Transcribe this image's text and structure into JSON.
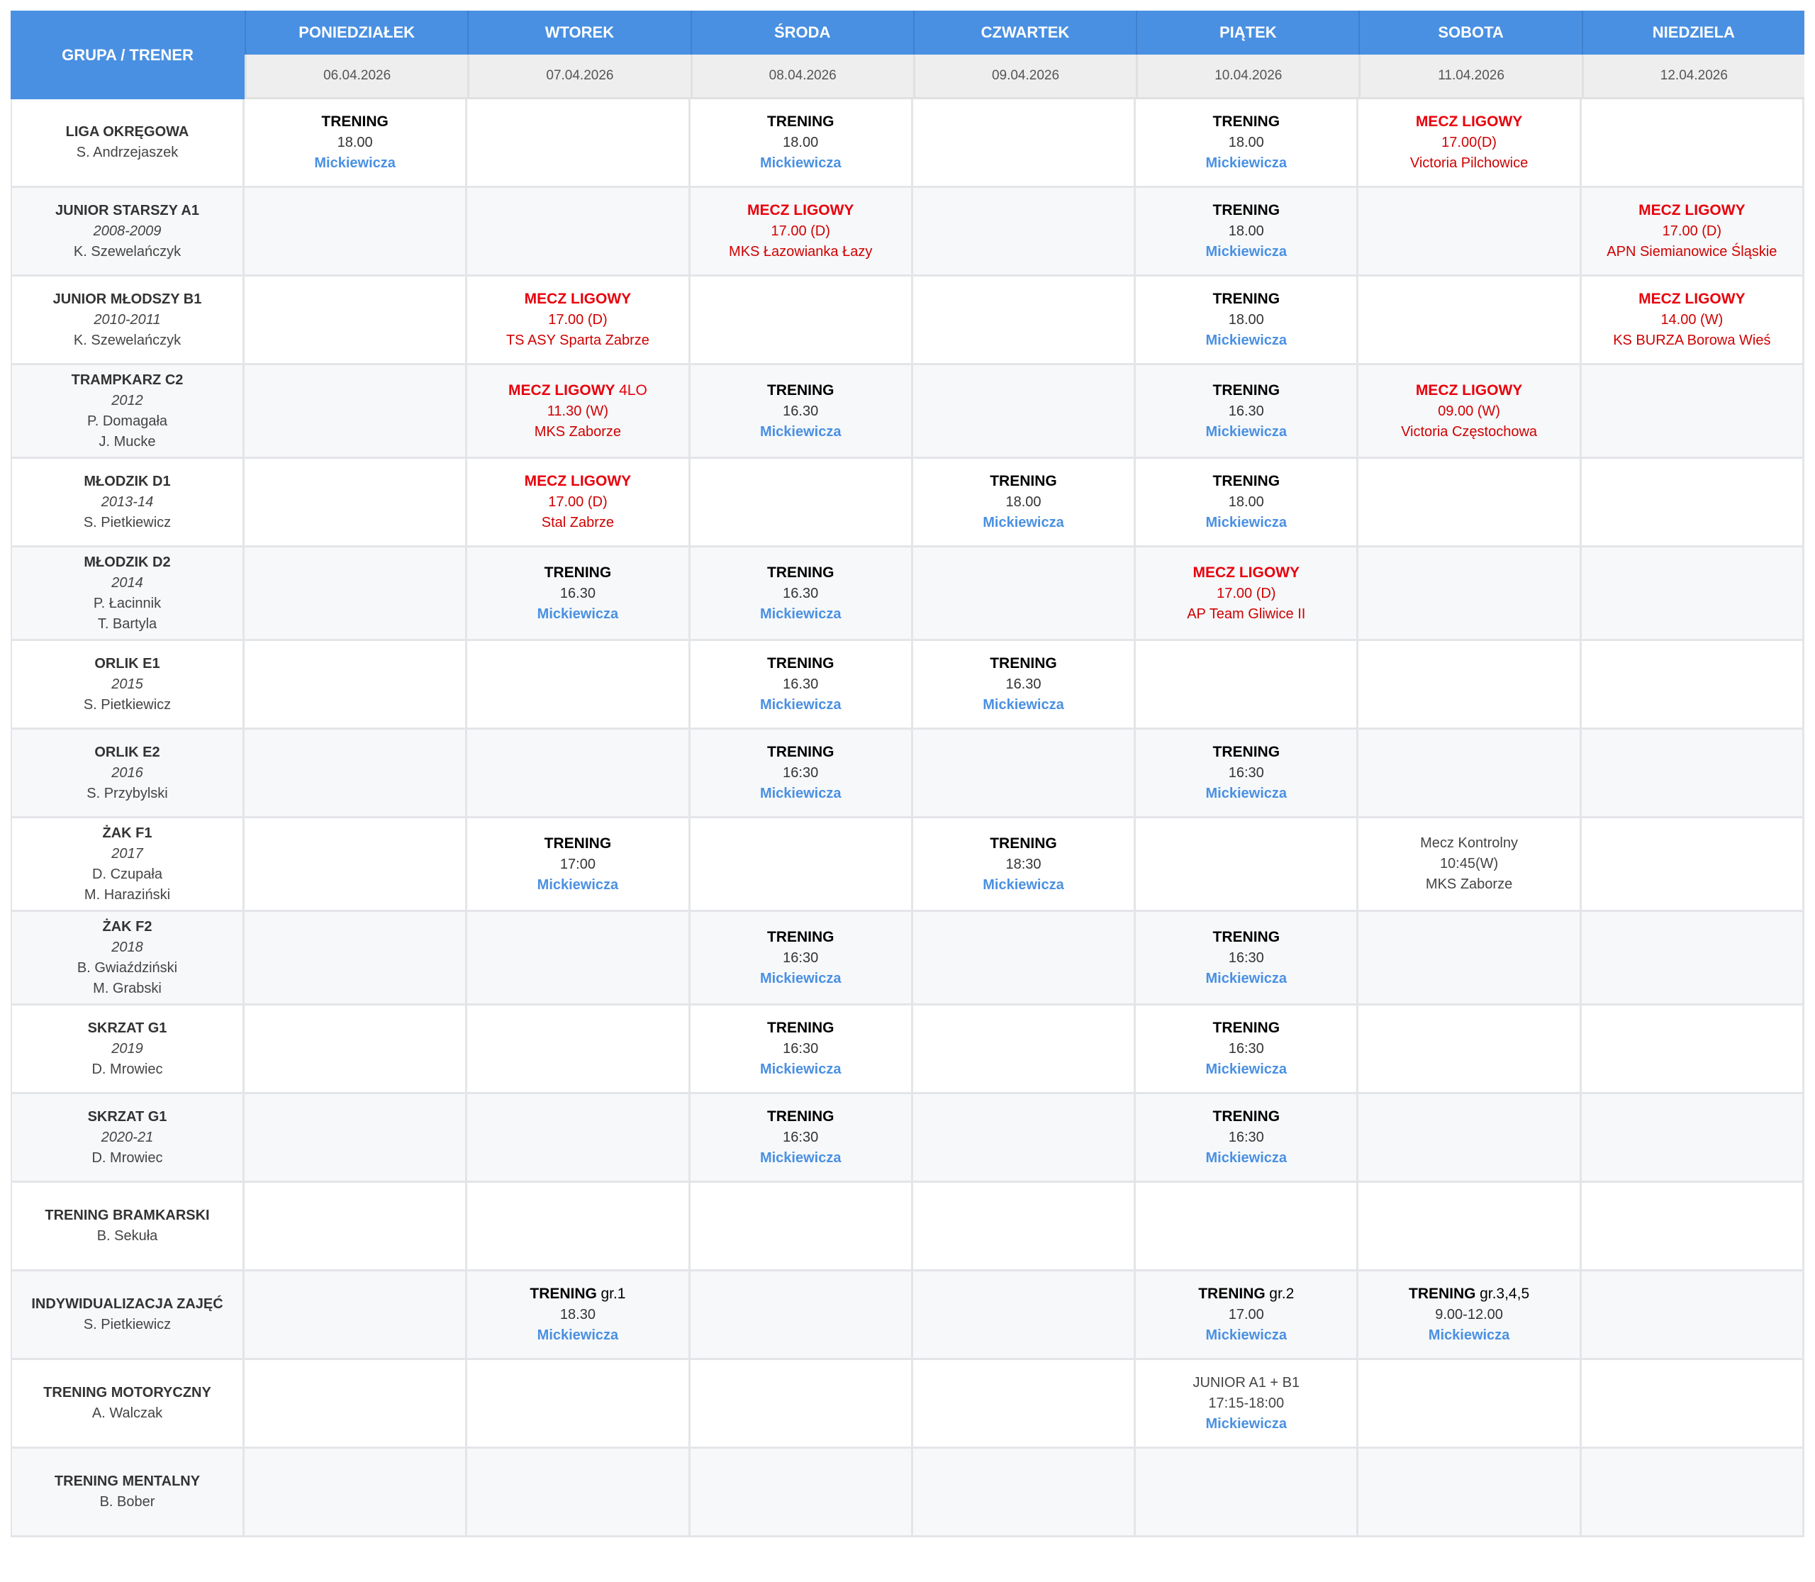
{
  "header": {
    "group_label": "GRUPA / TRENER",
    "days": [
      {
        "name": "PONIEDZIAŁEK",
        "date": "06.04.2026"
      },
      {
        "name": "WTOREK",
        "date": "07.04.2026"
      },
      {
        "name": "ŚRODA",
        "date": "08.04.2026"
      },
      {
        "name": "CZWARTEK",
        "date": "09.04.2026"
      },
      {
        "name": "PIĄTEK",
        "date": "10.04.2026"
      },
      {
        "name": "SOBOTA",
        "date": "11.04.2026"
      },
      {
        "name": "NIEDZIELA",
        "date": "12.04.2026"
      }
    ]
  },
  "colors": {
    "header": "#4a90e2",
    "training": "#000000",
    "match": "#e8000b",
    "venue": "#4a90e2"
  },
  "rows": [
    {
      "group": {
        "name": "LIGA OKRĘGOWA",
        "year": "",
        "coaches": [
          "S. Andrzejaszek"
        ]
      },
      "cells": [
        [
          {
            "k": "head",
            "t": "TRENING"
          },
          {
            "k": "time",
            "t": "18.00"
          },
          {
            "k": "venue",
            "t": "Mickiewicza"
          }
        ],
        null,
        [
          {
            "k": "head",
            "t": "TRENING"
          },
          {
            "k": "time",
            "t": "18.00"
          },
          {
            "k": "venue",
            "t": "Mickiewicza"
          }
        ],
        null,
        [
          {
            "k": "head",
            "t": "TRENING"
          },
          {
            "k": "time",
            "t": "18.00"
          },
          {
            "k": "venue",
            "t": "Mickiewicza"
          }
        ],
        [
          {
            "k": "head-match",
            "t": "MECZ LIGOWY"
          },
          {
            "k": "time-match",
            "t": "17.00(D)"
          },
          {
            "k": "opponent",
            "t": "Victoria Pilchowice"
          }
        ],
        null
      ]
    },
    {
      "group": {
        "name": "JUNIOR STARSZY A1",
        "year": "2008-2009",
        "coaches": [
          "K. Szewelańczyk"
        ]
      },
      "cells": [
        null,
        null,
        [
          {
            "k": "head-match",
            "t": "MECZ LIGOWY"
          },
          {
            "k": "time-match",
            "t": "17.00 (D)"
          },
          {
            "k": "opponent",
            "t": "MKS Łazowianka Łazy"
          }
        ],
        null,
        [
          {
            "k": "head",
            "t": "TRENING"
          },
          {
            "k": "time",
            "t": "18.00"
          },
          {
            "k": "venue",
            "t": "Mickiewicza"
          }
        ],
        null,
        [
          {
            "k": "head-match",
            "t": "MECZ LIGOWY"
          },
          {
            "k": "time-match",
            "t": "17.00 (D)"
          },
          {
            "k": "opponent",
            "t": "APN Siemianowice Śląskie"
          }
        ]
      ]
    },
    {
      "group": {
        "name": "JUNIOR MŁODSZY B1",
        "year": "2010-2011",
        "coaches": [
          "K. Szewelańczyk"
        ]
      },
      "cells": [
        null,
        [
          {
            "k": "head-match",
            "t": "MECZ LIGOWY"
          },
          {
            "k": "time-match",
            "t": "17.00 (D)"
          },
          {
            "k": "opponent",
            "t": "TS ASY Sparta Zabrze"
          }
        ],
        null,
        null,
        [
          {
            "k": "head",
            "t": "TRENING"
          },
          {
            "k": "time",
            "t": "18.00"
          },
          {
            "k": "venue",
            "t": "Mickiewicza"
          }
        ],
        null,
        [
          {
            "k": "head-match",
            "t": "MECZ LIGOWY"
          },
          {
            "k": "time-match",
            "t": "14.00 (W)"
          },
          {
            "k": "opponent",
            "t": "KS BURZA Borowa Wieś"
          }
        ]
      ]
    },
    {
      "group": {
        "name": "TRAMPKARZ C2",
        "year": "2012",
        "coaches": [
          "P. Domagała",
          "J. Mucke"
        ]
      },
      "cells": [
        null,
        [
          {
            "k": "head-match",
            "t": "MECZ LIGOWY",
            "s": "4LO"
          },
          {
            "k": "time-match",
            "t": "11.30 (W)"
          },
          {
            "k": "opponent",
            "t": "MKS Zaborze"
          }
        ],
        [
          {
            "k": "head",
            "t": "TRENING"
          },
          {
            "k": "time",
            "t": "16.30"
          },
          {
            "k": "venue",
            "t": "Mickiewicza"
          }
        ],
        null,
        [
          {
            "k": "head",
            "t": "TRENING"
          },
          {
            "k": "time",
            "t": "16.30"
          },
          {
            "k": "venue",
            "t": "Mickiewicza"
          }
        ],
        [
          {
            "k": "head-match",
            "t": "MECZ LIGOWY"
          },
          {
            "k": "time-match",
            "t": "09.00 (W)"
          },
          {
            "k": "opponent",
            "t": "Victoria Częstochowa"
          }
        ],
        null
      ]
    },
    {
      "group": {
        "name": "MŁODZIK D1",
        "year": "2013-14",
        "coaches": [
          "S. Pietkiewicz"
        ]
      },
      "cells": [
        null,
        [
          {
            "k": "head-match",
            "t": "MECZ LIGOWY"
          },
          {
            "k": "time-match",
            "t": "17.00 (D)"
          },
          {
            "k": "opponent",
            "t": "Stal Zabrze"
          }
        ],
        null,
        [
          {
            "k": "head",
            "t": "TRENING"
          },
          {
            "k": "time",
            "t": "18.00"
          },
          {
            "k": "venue",
            "t": "Mickiewicza"
          }
        ],
        [
          {
            "k": "head",
            "t": "TRENING"
          },
          {
            "k": "time",
            "t": "18.00"
          },
          {
            "k": "venue",
            "t": "Mickiewicza"
          }
        ],
        null,
        null
      ]
    },
    {
      "group": {
        "name": "MŁODZIK D2",
        "year": "2014",
        "coaches": [
          "P. Łacinnik",
          "T. Bartyla"
        ]
      },
      "cells": [
        null,
        [
          {
            "k": "head",
            "t": "TRENING"
          },
          {
            "k": "time",
            "t": "16.30"
          },
          {
            "k": "venue",
            "t": "Mickiewicza"
          }
        ],
        [
          {
            "k": "head",
            "t": "TRENING"
          },
          {
            "k": "time",
            "t": "16.30"
          },
          {
            "k": "venue",
            "t": "Mickiewicza"
          }
        ],
        null,
        [
          {
            "k": "head-match",
            "t": "MECZ LIGOWY"
          },
          {
            "k": "time-match",
            "t": "17.00 (D)"
          },
          {
            "k": "opponent",
            "t": "AP Team Gliwice II"
          }
        ],
        null,
        null
      ]
    },
    {
      "group": {
        "name": "ORLIK E1",
        "year": "2015",
        "coaches": [
          "S. Pietkiewicz"
        ]
      },
      "cells": [
        null,
        null,
        [
          {
            "k": "head",
            "t": "TRENING"
          },
          {
            "k": "time",
            "t": "16.30"
          },
          {
            "k": "venue",
            "t": "Mickiewicza"
          }
        ],
        [
          {
            "k": "head",
            "t": "TRENING"
          },
          {
            "k": "time",
            "t": "16.30"
          },
          {
            "k": "venue",
            "t": "Mickiewicza"
          }
        ],
        null,
        null,
        null
      ]
    },
    {
      "group": {
        "name": "ORLIK E2",
        "year": "2016",
        "coaches": [
          "S. Przybylski"
        ]
      },
      "cells": [
        null,
        null,
        [
          {
            "k": "head",
            "t": "TRENING"
          },
          {
            "k": "time",
            "t": "16:30"
          },
          {
            "k": "venue",
            "t": "Mickiewicza"
          }
        ],
        null,
        [
          {
            "k": "head",
            "t": "TRENING"
          },
          {
            "k": "time",
            "t": "16:30"
          },
          {
            "k": "venue",
            "t": "Mickiewicza"
          }
        ],
        null,
        null
      ]
    },
    {
      "group": {
        "name": "ŻAK F1",
        "year": "2017",
        "coaches": [
          "D. Czupała",
          "M. Haraziński"
        ]
      },
      "cells": [
        null,
        [
          {
            "k": "head",
            "t": "TRENING"
          },
          {
            "k": "time",
            "t": "17:00"
          },
          {
            "k": "venue",
            "t": "Mickiewicza"
          }
        ],
        null,
        [
          {
            "k": "head",
            "t": "TRENING"
          },
          {
            "k": "time",
            "t": "18:30"
          },
          {
            "k": "venue",
            "t": "Mickiewicza"
          }
        ],
        null,
        [
          {
            "k": "plain",
            "t": "Mecz Kontrolny"
          },
          {
            "k": "plain",
            "t": "10:45(W)"
          },
          {
            "k": "plain",
            "t": "MKS Zaborze"
          }
        ],
        null
      ]
    },
    {
      "group": {
        "name": "ŻAK F2",
        "year": "2018",
        "coaches": [
          "B. Gwiaździński",
          "M. Grabski"
        ]
      },
      "cells": [
        null,
        null,
        [
          {
            "k": "head",
            "t": "TRENING"
          },
          {
            "k": "time",
            "t": "16:30"
          },
          {
            "k": "venue",
            "t": "Mickiewicza"
          }
        ],
        null,
        [
          {
            "k": "head",
            "t": "TRENING"
          },
          {
            "k": "time",
            "t": "16:30"
          },
          {
            "k": "venue",
            "t": "Mickiewicza"
          }
        ],
        null,
        null
      ]
    },
    {
      "group": {
        "name": "SKRZAT G1",
        "year": "2019",
        "coaches": [
          "D. Mrowiec"
        ]
      },
      "cells": [
        null,
        null,
        [
          {
            "k": "head",
            "t": "TRENING"
          },
          {
            "k": "time",
            "t": "16:30"
          },
          {
            "k": "venue",
            "t": "Mickiewicza"
          }
        ],
        null,
        [
          {
            "k": "head",
            "t": "TRENING"
          },
          {
            "k": "time",
            "t": "16:30"
          },
          {
            "k": "venue",
            "t": "Mickiewicza"
          }
        ],
        null,
        null
      ]
    },
    {
      "group": {
        "name": "SKRZAT G1",
        "year": "2020-21",
        "coaches": [
          "D. Mrowiec"
        ]
      },
      "cells": [
        null,
        null,
        [
          {
            "k": "head",
            "t": "TRENING"
          },
          {
            "k": "time",
            "t": "16:30"
          },
          {
            "k": "venue",
            "t": "Mickiewicza"
          }
        ],
        null,
        [
          {
            "k": "head",
            "t": "TRENING"
          },
          {
            "k": "time",
            "t": "16:30"
          },
          {
            "k": "venue",
            "t": "Mickiewicza"
          }
        ],
        null,
        null
      ]
    },
    {
      "group": {
        "name": "TRENING BRAMKARSKI",
        "year": "",
        "coaches": [
          "B. Sekuła"
        ]
      },
      "cells": [
        null,
        null,
        null,
        null,
        null,
        null,
        null
      ]
    },
    {
      "group": {
        "name": "INDYWIDUALIZACJA ZAJĘĆ",
        "year": "",
        "coaches": [
          "S. Pietkiewicz"
        ]
      },
      "cells": [
        null,
        [
          {
            "k": "head",
            "t": "TRENING",
            "s": "gr.1"
          },
          {
            "k": "time",
            "t": "18.30"
          },
          {
            "k": "venue",
            "t": "Mickiewicza"
          }
        ],
        null,
        null,
        [
          {
            "k": "head",
            "t": "TRENING",
            "s": "gr.2"
          },
          {
            "k": "time",
            "t": "17.00"
          },
          {
            "k": "venue",
            "t": "Mickiewicza"
          }
        ],
        [
          {
            "k": "head",
            "t": "TRENING",
            "s": "gr.3,4,5"
          },
          {
            "k": "time",
            "t": "9.00-12.00"
          },
          {
            "k": "venue",
            "t": "Mickiewicza"
          }
        ],
        null
      ]
    },
    {
      "group": {
        "name": "TRENING MOTORYCZNY",
        "year": "",
        "coaches": [
          "A. Walczak"
        ]
      },
      "cells": [
        null,
        null,
        null,
        null,
        [
          {
            "k": "plain",
            "t": "JUNIOR A1 + B1"
          },
          {
            "k": "plain",
            "t": "17:15-18:00"
          },
          {
            "k": "venue",
            "t": "Mickiewicza"
          }
        ],
        null,
        null
      ]
    },
    {
      "group": {
        "name": "TRENING MENTALNY",
        "year": "",
        "coaches": [
          "B. Bober"
        ]
      },
      "cells": [
        null,
        null,
        null,
        null,
        null,
        null,
        null
      ]
    }
  ]
}
